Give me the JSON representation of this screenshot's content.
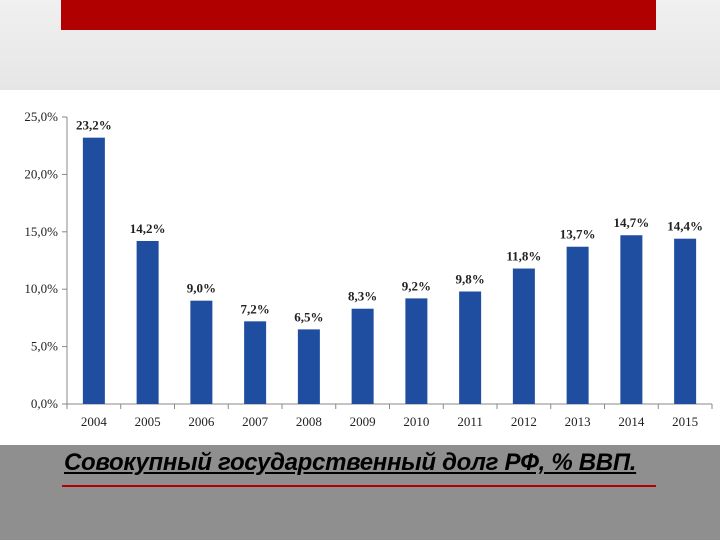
{
  "slide": {
    "caption": "Совокупный государственный долг РФ, % ВВП.",
    "colors": {
      "accent": "#b00000",
      "bar": "#1f4ea1",
      "bottom_band": "#8f8f8f"
    }
  },
  "chart_data": {
    "type": "bar",
    "title": "",
    "xlabel": "",
    "ylabel": "",
    "categories": [
      "2004",
      "2005",
      "2006",
      "2007",
      "2008",
      "2009",
      "2010",
      "2011",
      "2012",
      "2013",
      "2014",
      "2015"
    ],
    "values": [
      23.2,
      14.2,
      9.0,
      7.2,
      6.5,
      8.3,
      9.2,
      9.8,
      11.8,
      13.7,
      14.7,
      14.4
    ],
    "value_labels": [
      "23,2%",
      "14,2%",
      "9,0%",
      "7,2%",
      "6,5%",
      "8,3%",
      "9,2%",
      "9,8%",
      "11,8%",
      "13,7%",
      "14,7%",
      "14,4%"
    ],
    "ylim": [
      0,
      25
    ],
    "yticks": [
      0,
      5,
      10,
      15,
      20,
      25
    ],
    "ytick_labels": [
      "0,0%",
      "5,0%",
      "10,0%",
      "15,0%",
      "20,0%",
      "25,0%"
    ],
    "grid": false,
    "legend": "none",
    "bar_color": "#1f4ea1"
  }
}
